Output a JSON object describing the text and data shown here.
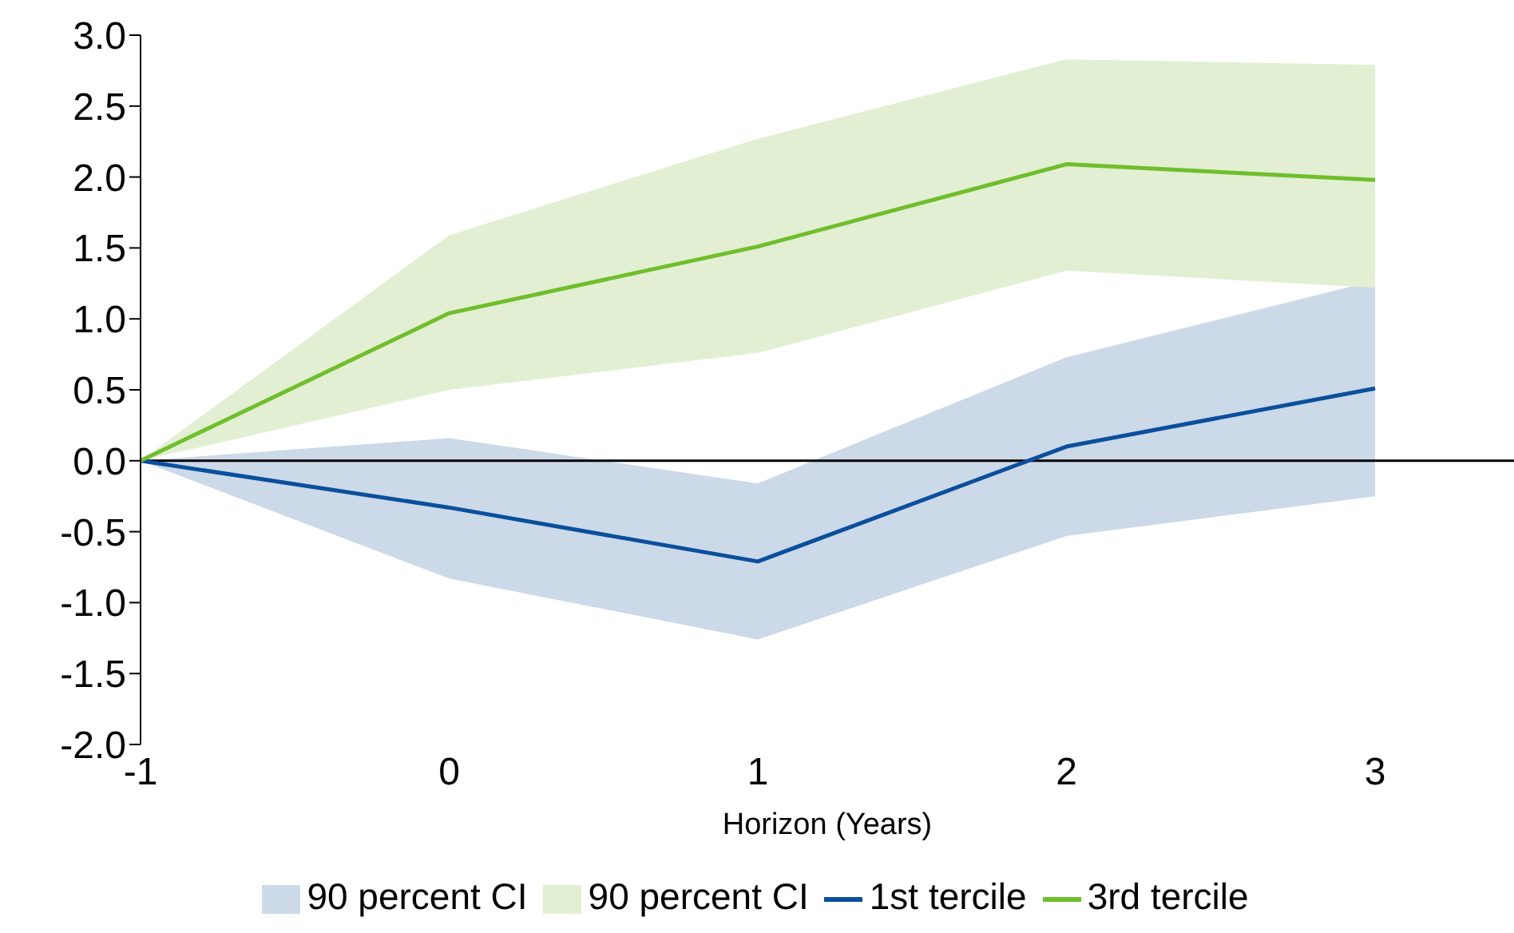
{
  "chart_data": {
    "type": "line",
    "xlabel": "Horizon (Years)",
    "x": [
      -1,
      0,
      1,
      2,
      3
    ],
    "xlim": [
      -1,
      3.45
    ],
    "xticks": [
      -1,
      0,
      1,
      2,
      3
    ],
    "ylim": [
      -2,
      3
    ],
    "yticks": [
      {
        "value": -2,
        "label": "-2.0"
      },
      {
        "value": -1.5,
        "label": "-1.5"
      },
      {
        "value": -1,
        "label": "-1.0"
      },
      {
        "value": -0.5,
        "label": "-0.5"
      },
      {
        "value": 0,
        "label": "0.0"
      },
      {
        "value": 0.5,
        "label": "0.5"
      },
      {
        "value": 1,
        "label": "1.0"
      },
      {
        "value": 1.5,
        "label": "1.5"
      },
      {
        "value": 2,
        "label": "2.0"
      },
      {
        "value": 2.5,
        "label": "2.5"
      },
      {
        "value": 3,
        "label": "3.0"
      }
    ],
    "grid": false,
    "legend": "bottom",
    "marker": "none",
    "line_style": "solid",
    "ref_lines": [
      {
        "axis": "y",
        "value": 0,
        "color": "#000000"
      }
    ],
    "series": [
      {
        "name": "90 percent CI",
        "type": "area",
        "color": "#cbd9e8",
        "values": [
          null,
          null,
          null,
          null,
          null
        ],
        "lower": [
          0,
          -0.83,
          -1.26,
          -0.53,
          -0.25
        ],
        "upper": [
          0,
          0.16,
          -0.16,
          0.73,
          1.27
        ]
      },
      {
        "name": "90 percent CI",
        "type": "area",
        "color": "#e2efd2",
        "values": [
          null,
          null,
          null,
          null,
          null
        ],
        "lower": [
          0,
          0.5,
          0.76,
          1.34,
          1.22
        ],
        "upper": [
          0,
          1.59,
          2.27,
          2.83,
          2.79
        ]
      },
      {
        "name": "1st tercile",
        "color": "#0b4f9c",
        "values": [
          0,
          -0.33,
          -0.71,
          0.1,
          0.51
        ]
      },
      {
        "name": "3rd tercile",
        "color": "#6fbe2c",
        "values": [
          0,
          1.04,
          1.51,
          2.09,
          1.98
        ]
      }
    ]
  }
}
